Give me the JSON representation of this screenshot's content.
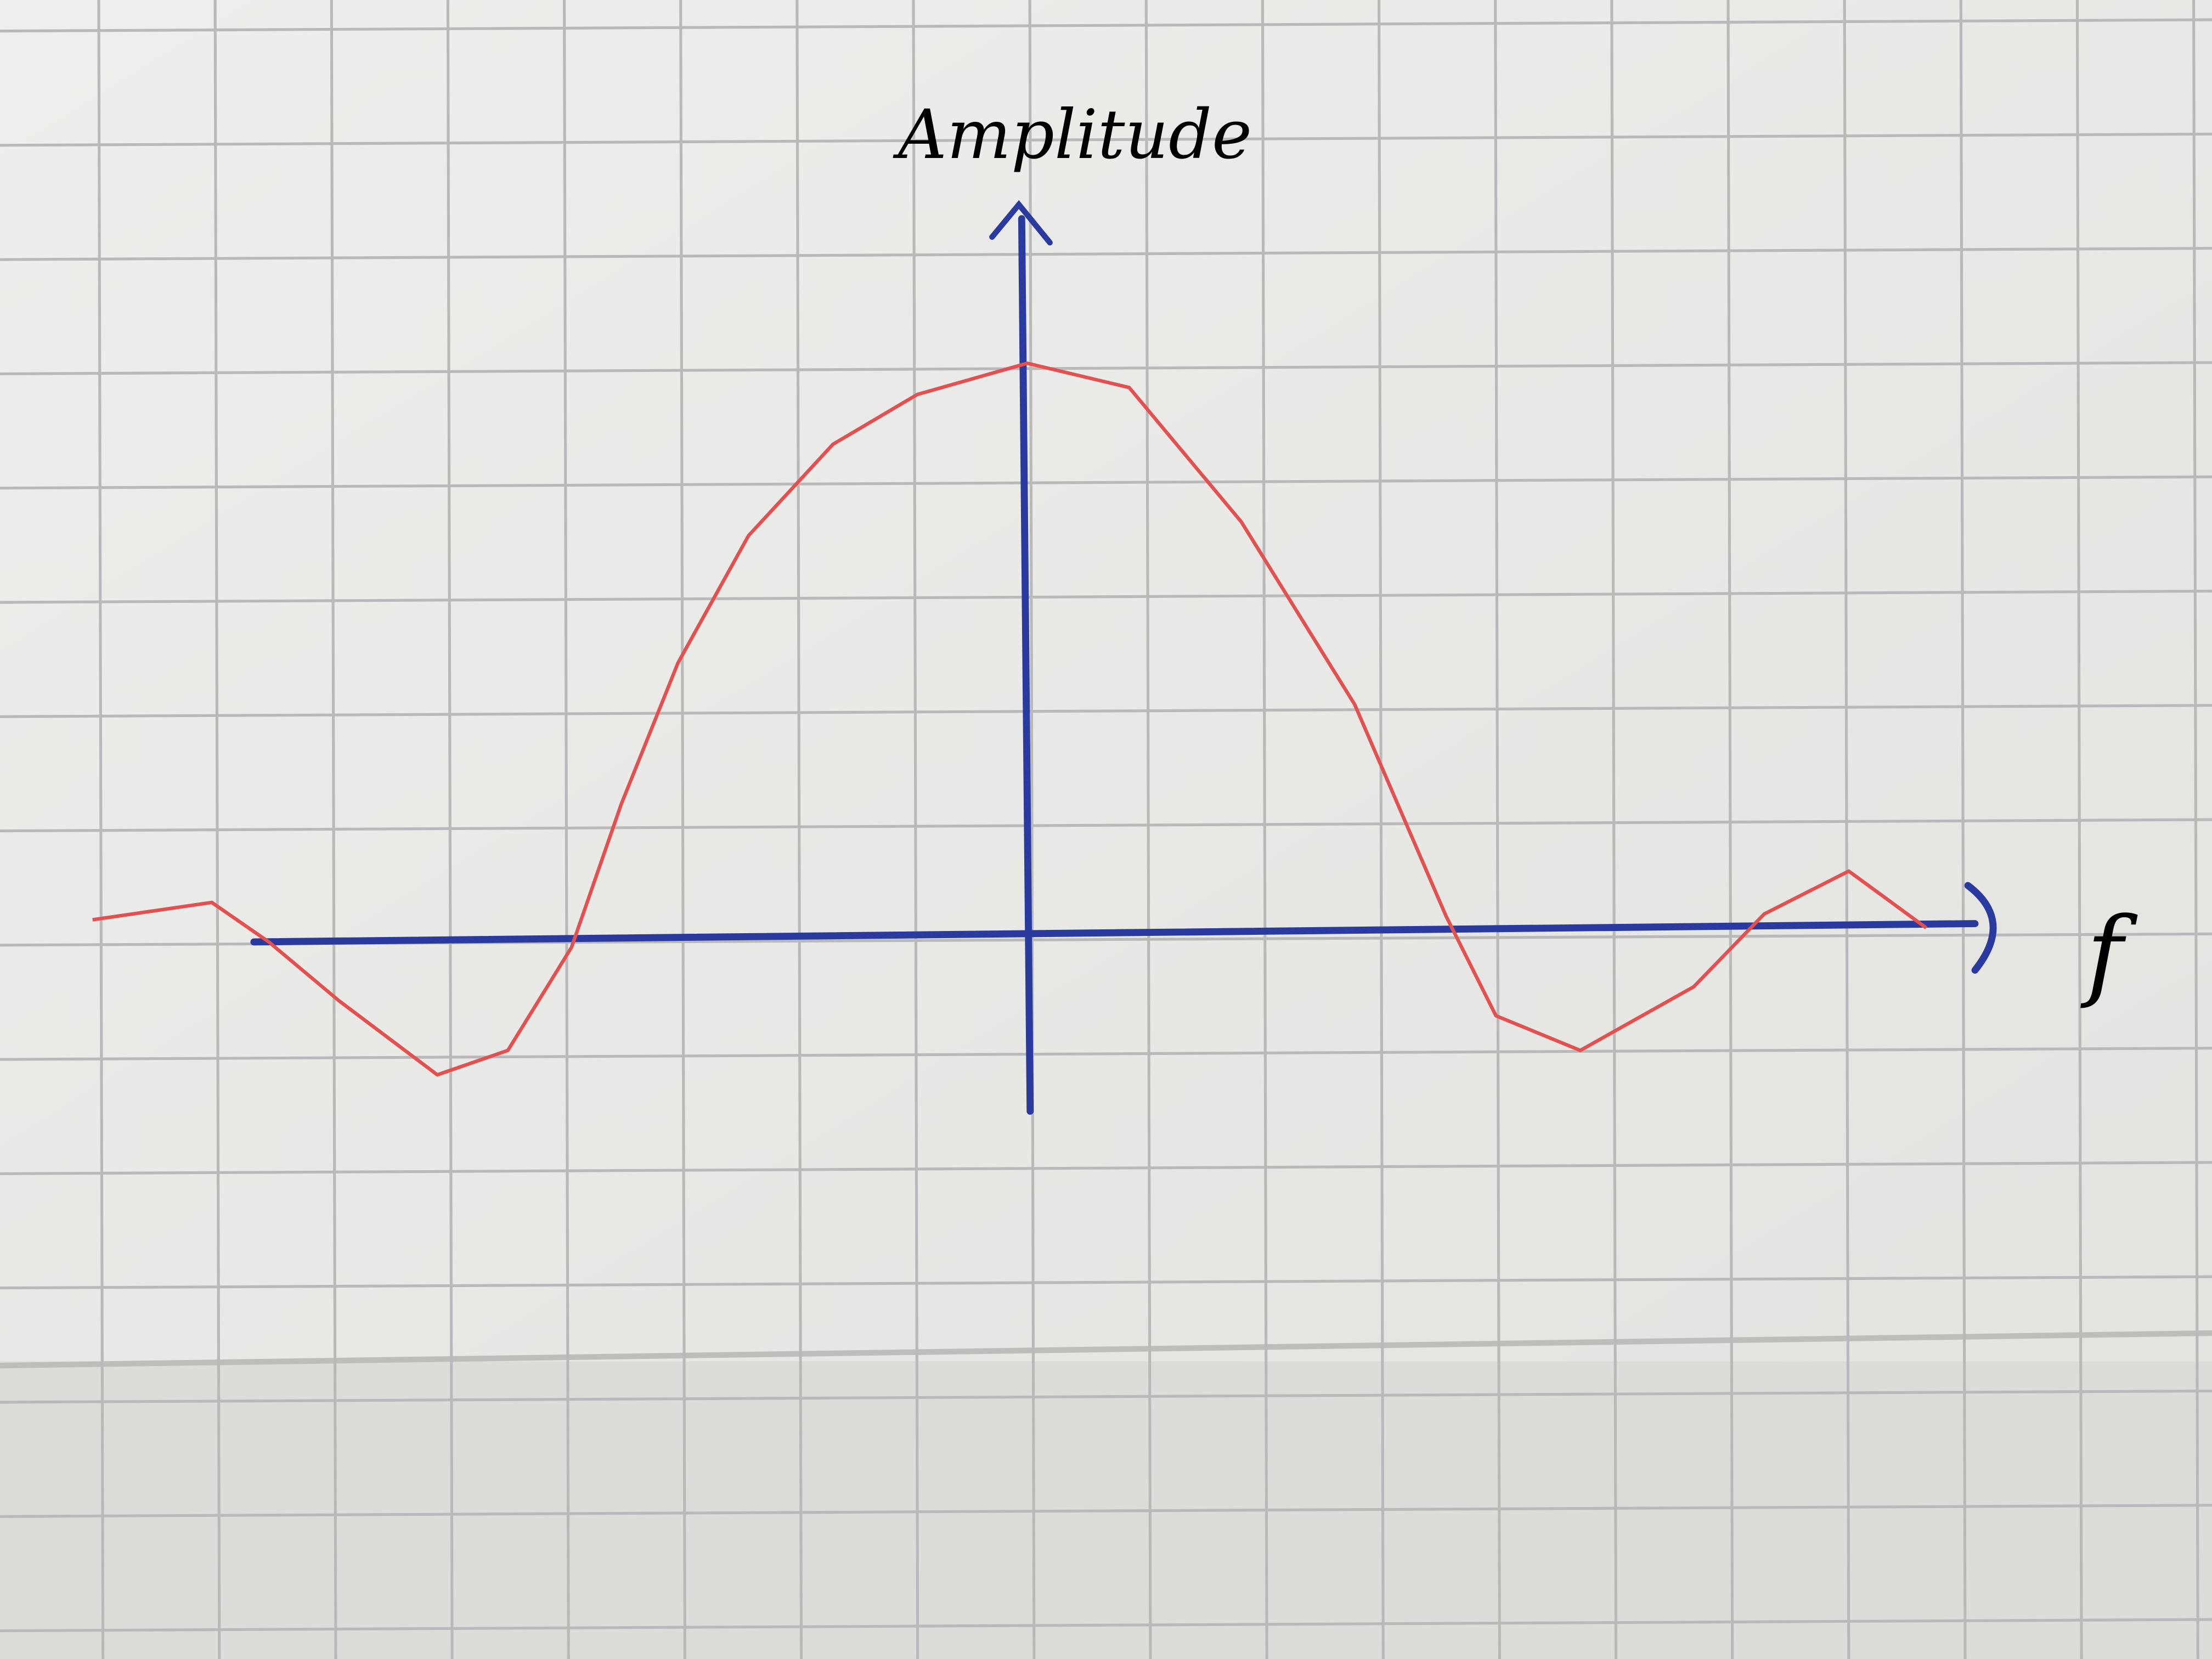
{
  "chart_data": {
    "type": "line",
    "y_label": "Amplitude",
    "x_label": "f",
    "x": [
      -8.08,
      -7.05,
      -6.56,
      -5.95,
      -5.1,
      -4.49,
      -3.94,
      -3.51,
      -3.02,
      -2.41,
      -1.68,
      -0.95,
      0,
      0.88,
      1.85,
      2.83,
      3.62,
      4.05,
      4.78,
      5.76,
      6.37,
      7.1,
      7.77
    ],
    "series": [
      {
        "color": "#e2504f",
        "values": [
          0.07,
          0.22,
          -0.12,
          -0.63,
          -1.27,
          -1.06,
          -0.17,
          1.07,
          2.29,
          3.39,
          4.18,
          4.61,
          4.88,
          4.67,
          3.51,
          1.93,
          0.1,
          -0.76,
          -1.06,
          -0.51,
          0.12,
          0.49,
          0
        ]
      }
    ],
    "xlim": [
      -8.88,
      10.24
    ],
    "ylim": [
      -6.32,
      8.02
    ],
    "axis_color": "#2a3a9e"
  }
}
